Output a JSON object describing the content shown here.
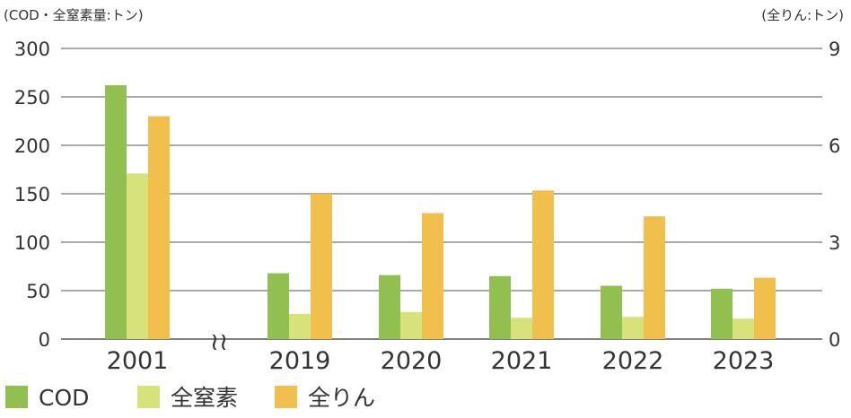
{
  "chart_data": {
    "type": "bar",
    "left_axis_label": "(COD・全窒素量:トン)",
    "right_axis_label": "(全りん:トン)",
    "categories": [
      "2001",
      "2019",
      "2020",
      "2021",
      "2022",
      "2023"
    ],
    "break_marker": "≀≀",
    "series": [
      {
        "name": "COD",
        "axis": "left",
        "color": "#92c050",
        "values": [
          262,
          68,
          66,
          65,
          55,
          52
        ]
      },
      {
        "name": "全窒素",
        "axis": "left",
        "color": "#d8e27a",
        "values": [
          171,
          26,
          28,
          22,
          23,
          21
        ]
      },
      {
        "name": "全りん",
        "axis": "right",
        "color": "#f0bf4c",
        "values": [
          6.9,
          4.5,
          3.9,
          4.6,
          3.8,
          1.9
        ]
      }
    ],
    "y_left": {
      "min": 0,
      "max": 300,
      "ticks": [
        "0",
        "50",
        "100",
        "150",
        "200",
        "250",
        "300"
      ]
    },
    "y_right": {
      "min": 0,
      "max": 9,
      "ticks": [
        "0",
        "3",
        "6",
        "9"
      ]
    },
    "grid": true,
    "legend_position": "bottom-left"
  }
}
